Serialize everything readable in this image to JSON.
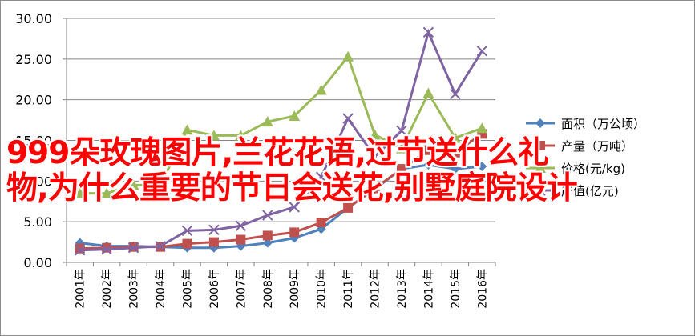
{
  "chart_data": {
    "type": "line",
    "categories": [
      "2001年",
      "2002年",
      "2003年",
      "2004年",
      "2005年",
      "2006年",
      "2007年",
      "2008年",
      "2009年",
      "2010年",
      "2011年",
      "2012年",
      "2013年",
      "2014年",
      "2015年",
      "2016年"
    ],
    "ylim": [
      0,
      30
    ],
    "yticks": [
      "0.00",
      "5.00",
      "10.00",
      "15.00",
      "20.00",
      "25.00",
      "30.00"
    ],
    "grid": true,
    "legend_position": "right",
    "series": [
      {
        "name": "面积（万公顷）",
        "color": "#4f81bd",
        "marker": "diamond",
        "values": [
          2.4,
          2.0,
          2.0,
          1.9,
          1.8,
          1.8,
          2.0,
          2.4,
          3.0,
          4.1,
          6.7,
          9.0,
          11.5,
          12.0,
          11.5,
          11.8
        ]
      },
      {
        "name": "产量（万吨）",
        "color": "#c0504d",
        "marker": "square",
        "values": [
          1.7,
          1.8,
          1.9,
          1.9,
          2.3,
          2.5,
          2.8,
          3.3,
          3.7,
          4.9,
          6.7,
          9.1,
          11.5,
          13.8,
          13.5,
          15.8
        ]
      },
      {
        "name": "价格(元/kg)",
        "color": "#9bbb59",
        "marker": "triangle",
        "values": [
          8.5,
          8.5,
          9.5,
          9.5,
          16.3,
          15.6,
          15.6,
          17.3,
          18.0,
          21.2,
          25.3,
          15.7,
          14.0,
          20.8,
          15.3,
          16.5
        ]
      },
      {
        "name": "产值(亿元)",
        "color": "#8064a2",
        "marker": "x",
        "values": [
          1.5,
          1.6,
          1.8,
          2.0,
          3.9,
          4.0,
          4.5,
          5.8,
          6.8,
          10.5,
          17.7,
          13.0,
          16.2,
          28.3,
          20.7,
          26.0
        ]
      }
    ]
  },
  "overlay": {
    "line1": "999朵玫瑰图片,兰花花语,过节送什么礼",
    "line2": "物,为什么重要的节日会送花,别墅庭院设计"
  }
}
